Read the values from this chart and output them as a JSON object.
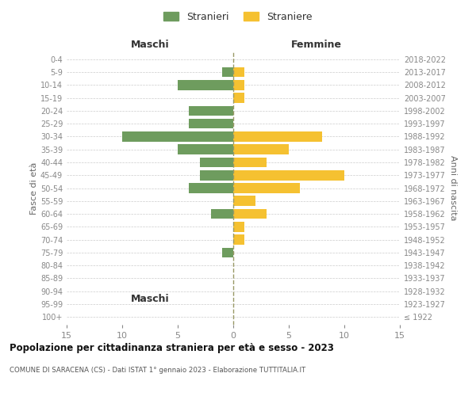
{
  "age_groups": [
    "100+",
    "95-99",
    "90-94",
    "85-89",
    "80-84",
    "75-79",
    "70-74",
    "65-69",
    "60-64",
    "55-59",
    "50-54",
    "45-49",
    "40-44",
    "35-39",
    "30-34",
    "25-29",
    "20-24",
    "15-19",
    "10-14",
    "5-9",
    "0-4"
  ],
  "birth_years": [
    "≤ 1922",
    "1923-1927",
    "1928-1932",
    "1933-1937",
    "1938-1942",
    "1943-1947",
    "1948-1952",
    "1953-1957",
    "1958-1962",
    "1963-1967",
    "1968-1972",
    "1973-1977",
    "1978-1982",
    "1983-1987",
    "1988-1992",
    "1993-1997",
    "1998-2002",
    "2003-2007",
    "2008-2012",
    "2013-2017",
    "2018-2022"
  ],
  "males": [
    0,
    0,
    0,
    0,
    0,
    1,
    0,
    0,
    2,
    0,
    4,
    3,
    3,
    5,
    10,
    4,
    4,
    0,
    5,
    1,
    0
  ],
  "females": [
    0,
    0,
    0,
    0,
    0,
    0,
    1,
    1,
    3,
    2,
    6,
    10,
    3,
    5,
    8,
    0,
    0,
    1,
    1,
    1,
    0
  ],
  "male_color": "#6e9c5e",
  "female_color": "#f5c131",
  "title1": "Popolazione per cittadinanza straniera per età e sesso - 2023",
  "title2": "COMUNE DI SARACENA (CS) - Dati ISTAT 1° gennaio 2023 - Elaborazione TUTTITALIA.IT",
  "ylabel_left": "Fasce di età",
  "ylabel_right": "Anni di nascita",
  "xlabel_left": "Maschi",
  "xlabel_right": "Femmine",
  "legend_male": "Stranieri",
  "legend_female": "Straniere",
  "xlim": 15,
  "background_color": "#ffffff",
  "grid_color": "#cccccc",
  "tick_color": "#888888",
  "center_line_color": "#999966"
}
